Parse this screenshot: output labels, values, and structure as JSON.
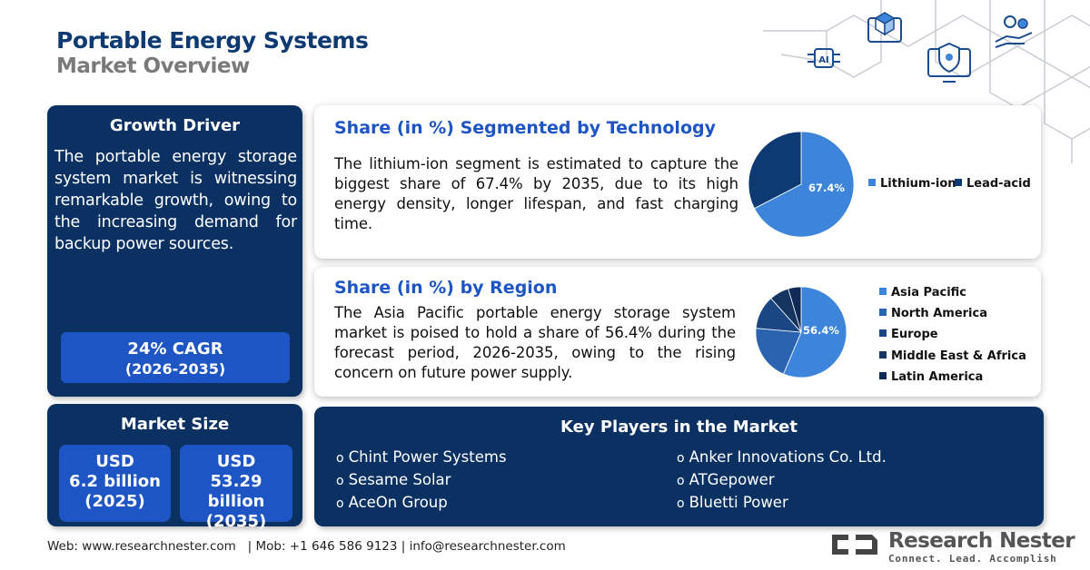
{
  "header": {
    "title": "Portable Energy Systems",
    "subtitle": "Market Overview"
  },
  "growth_driver": {
    "heading": "Growth Driver",
    "text": "The portable energy storage system market is witnessing remarkable growth, owing to the increasing demand for backup power sources.",
    "cagr_value": "24% CAGR",
    "cagr_period": "(2026-2035)"
  },
  "market_size": {
    "heading": "Market Size",
    "items": [
      {
        "currency": "USD",
        "value": "6.2 billion",
        "year": "(2025)"
      },
      {
        "currency": "USD",
        "value": "53.29 billion",
        "year": "(2035)"
      }
    ]
  },
  "technology": {
    "heading": "Share (in %) Segmented by Technology",
    "text": "The lithium-ion segment is estimated to capture the biggest share of 67.4% by 2035, due to its high energy density, longer lifespan, and fast charging time.",
    "pie_label": "67.4%",
    "legend": [
      {
        "label": "Lithium-ion",
        "color": "#3d85db"
      },
      {
        "label": "Lead-acid",
        "color": "#0e3a73"
      }
    ]
  },
  "region": {
    "heading": "Share (in %) by Region",
    "text": "The Asia Pacific portable energy storage system market is poised to hold a share of 56.4% during the forecast period, 2026-2035, owing to the rising concern on future power supply.",
    "pie_label": "56.4%",
    "legend": [
      {
        "label": "Asia Pacific",
        "color": "#3d85db"
      },
      {
        "label": "North America",
        "color": "#2a64b0"
      },
      {
        "label": "Europe",
        "color": "#1a4784"
      },
      {
        "label": "Middle East & Africa",
        "color": "#153560"
      },
      {
        "label": "Latin America",
        "color": "#0e2a55"
      }
    ]
  },
  "chart_data": [
    {
      "type": "pie",
      "categories": [
        "Lithium-ion",
        "Lead-acid"
      ],
      "values": [
        67.4,
        32.6
      ]
    },
    {
      "type": "pie",
      "categories": [
        "Asia Pacific",
        "North America",
        "Europe",
        "Middle East & Africa",
        "Latin America"
      ],
      "values": [
        56.4,
        20.0,
        12.0,
        7.0,
        4.6
      ]
    }
  ],
  "key_players": {
    "heading": "Key Players in the Market",
    "left": [
      "Chint Power Systems",
      "Sesame Solar",
      "AceOn Group"
    ],
    "right": [
      "Anker Innovations Co. Ltd.",
      "ATGepower",
      "Bluetti Power"
    ],
    "bullet": "o"
  },
  "footer": {
    "text": "Web: www.researchnester.com   | Mob: +1 646 586 9123 | info@researchnester.com"
  },
  "brand": {
    "name": "Research Nester",
    "tagline": "Connect. Lead. Accomplish"
  },
  "colors": {
    "navy": "#0b3163",
    "accent_blue": "#1d56c4",
    "pie_light": "#3d85db",
    "title_blue": "#0e3a73"
  }
}
